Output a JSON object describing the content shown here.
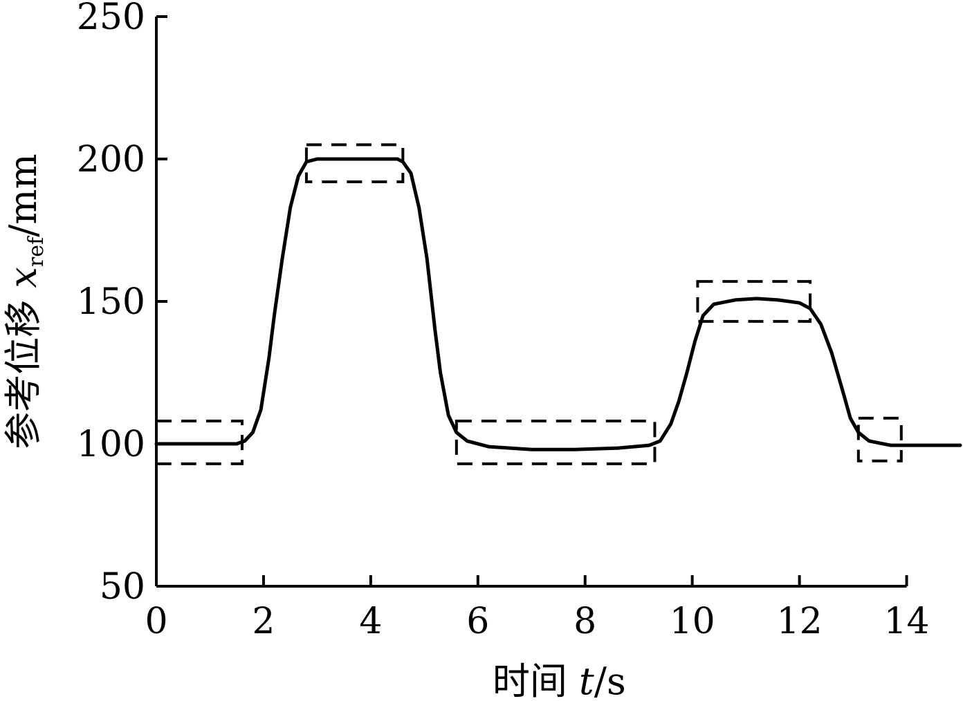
{
  "chart_data": {
    "type": "line",
    "title": "",
    "xlabel": {
      "prefix": "时间 ",
      "var": "t",
      "unit": "/s"
    },
    "ylabel": {
      "prefix": "参考位移 ",
      "var": "x",
      "sub": "ref",
      "unit": "/mm"
    },
    "xlim": [
      0,
      15
    ],
    "ylim": [
      50,
      250
    ],
    "x_ticks": [
      0,
      2,
      4,
      6,
      8,
      10,
      12,
      14
    ],
    "y_ticks": [
      50,
      100,
      150,
      200,
      250
    ],
    "grid": false,
    "legend": "none",
    "series": [
      {
        "color": "#000000",
        "style": "solid",
        "points": [
          [
            0,
            100
          ],
          [
            1.5,
            100
          ],
          [
            1.65,
            101
          ],
          [
            1.8,
            104
          ],
          [
            1.95,
            112
          ],
          [
            2.1,
            130
          ],
          [
            2.2,
            145
          ],
          [
            2.35,
            165
          ],
          [
            2.5,
            183
          ],
          [
            2.65,
            194
          ],
          [
            2.8,
            199
          ],
          [
            3.0,
            200
          ],
          [
            4.5,
            200
          ],
          [
            4.6,
            199
          ],
          [
            4.75,
            195
          ],
          [
            4.9,
            183
          ],
          [
            5.05,
            165
          ],
          [
            5.2,
            140
          ],
          [
            5.3,
            125
          ],
          [
            5.45,
            110
          ],
          [
            5.6,
            104
          ],
          [
            5.8,
            101
          ],
          [
            6.2,
            99
          ],
          [
            7.0,
            98
          ],
          [
            7.8,
            98
          ],
          [
            8.6,
            98.5
          ],
          [
            9.2,
            99.5
          ],
          [
            9.4,
            101
          ],
          [
            9.6,
            107
          ],
          [
            9.75,
            115
          ],
          [
            9.9,
            125
          ],
          [
            10.05,
            136
          ],
          [
            10.2,
            145
          ],
          [
            10.4,
            149
          ],
          [
            10.8,
            150.5
          ],
          [
            11.2,
            151
          ],
          [
            11.6,
            150.5
          ],
          [
            12.0,
            149.5
          ],
          [
            12.2,
            147.5
          ],
          [
            12.4,
            142
          ],
          [
            12.6,
            132
          ],
          [
            12.8,
            119
          ],
          [
            12.95,
            109
          ],
          [
            13.1,
            104
          ],
          [
            13.3,
            101
          ],
          [
            13.7,
            99.5
          ],
          [
            15.0,
            99.5
          ]
        ]
      }
    ],
    "boxes": [
      {
        "x": [
          0,
          1.6
        ],
        "y": [
          93,
          108
        ]
      },
      {
        "x": [
          2.8,
          4.6
        ],
        "y": [
          192,
          205
        ]
      },
      {
        "x": [
          5.6,
          9.3
        ],
        "y": [
          93,
          108
        ]
      },
      {
        "x": [
          10.1,
          12.2
        ],
        "y": [
          143,
          157
        ]
      },
      {
        "x": [
          13.1,
          13.9
        ],
        "y": [
          94,
          109
        ]
      }
    ]
  }
}
